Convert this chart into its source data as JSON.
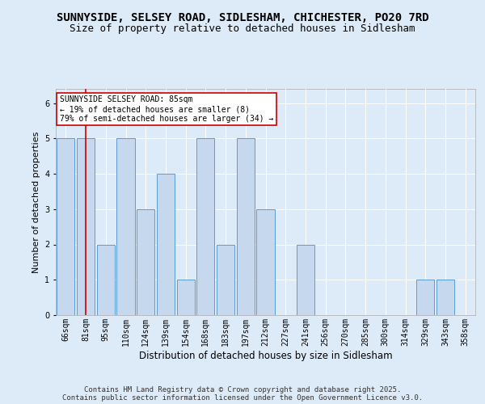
{
  "title_line1": "SUNNYSIDE, SELSEY ROAD, SIDLESHAM, CHICHESTER, PO20 7RD",
  "title_line2": "Size of property relative to detached houses in Sidlesham",
  "xlabel": "Distribution of detached houses by size in Sidlesham",
  "ylabel": "Number of detached properties",
  "categories": [
    "66sqm",
    "81sqm",
    "95sqm",
    "110sqm",
    "124sqm",
    "139sqm",
    "154sqm",
    "168sqm",
    "183sqm",
    "197sqm",
    "212sqm",
    "227sqm",
    "241sqm",
    "256sqm",
    "270sqm",
    "285sqm",
    "300sqm",
    "314sqm",
    "329sqm",
    "343sqm",
    "358sqm"
  ],
  "values": [
    5,
    5,
    2,
    5,
    3,
    4,
    1,
    5,
    2,
    5,
    3,
    0,
    2,
    0,
    0,
    0,
    0,
    0,
    1,
    1,
    0
  ],
  "bar_color": "#c5d8ed",
  "bar_edge_color": "#5b9bd5",
  "vline_x_index": 1,
  "vline_color": "#cc0000",
  "annotation_text": "SUNNYSIDE SELSEY ROAD: 85sqm\n← 19% of detached houses are smaller (8)\n79% of semi-detached houses are larger (34) →",
  "annotation_box_color": "#ffffff",
  "annotation_box_edge_color": "#cc0000",
  "ylim": [
    0,
    6.4
  ],
  "yticks": [
    0,
    1,
    2,
    3,
    4,
    5,
    6
  ],
  "footer_text": "Contains HM Land Registry data © Crown copyright and database right 2025.\nContains public sector information licensed under the Open Government Licence v3.0.",
  "background_color": "#ddeaf7",
  "plot_bg_color": "#ddeaf7",
  "title_fontsize": 10,
  "subtitle_fontsize": 9,
  "tick_fontsize": 7,
  "footer_fontsize": 6.5
}
